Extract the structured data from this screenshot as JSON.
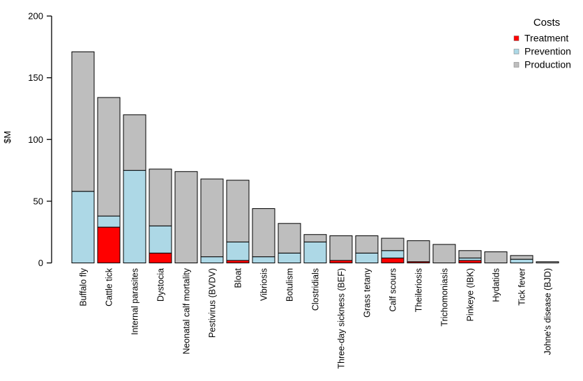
{
  "figure": {
    "background": "#ffffff",
    "text_color": "#000000",
    "bar_border_color": "#000000"
  },
  "chart_data": {
    "type": "bar",
    "stacked": true,
    "title": "",
    "xlabel": "",
    "ylabel": "$M",
    "ylim": [
      0,
      200
    ],
    "yticks": [
      0,
      50,
      100,
      150,
      200
    ],
    "grid": false,
    "legend": {
      "title": "Costs",
      "position": "top-right",
      "entries": [
        {
          "label": "Treatment",
          "color": "#ff0000"
        },
        {
          "label": "Prevention",
          "color": "#add8e6"
        },
        {
          "label": "Production",
          "color": "#bebebe"
        }
      ]
    },
    "categories": [
      "Buffalo fly",
      "Cattle tick",
      "Internal parasites",
      "Dystocia",
      "Neonatal calf mortality",
      "Pestivirus (BVDV)",
      "Bloat",
      "Vibriosis",
      "Botulism",
      "Clostridials",
      "Three-day sickness (BEF)",
      "Grass tetany",
      "Calf scours",
      "Theileriosis",
      "Trichomoniasis",
      "Pinkeye (IBK)",
      "Hydatids",
      "Tick fever",
      "Johne's disease (BJD)"
    ],
    "series": [
      {
        "name": "Treatment",
        "color": "#ff0000",
        "values": [
          0,
          29,
          0,
          8,
          0,
          0,
          2,
          0,
          0,
          0,
          2,
          0,
          4,
          1,
          0,
          2,
          0,
          0,
          0
        ]
      },
      {
        "name": "Prevention",
        "color": "#add8e6",
        "values": [
          58,
          9,
          75,
          22,
          0,
          5,
          15,
          5,
          8,
          17,
          0,
          8,
          6,
          0,
          0,
          2,
          0,
          3,
          0
        ]
      },
      {
        "name": "Production",
        "color": "#bebebe",
        "values": [
          113,
          96,
          45,
          46,
          74,
          63,
          50,
          39,
          24,
          6,
          20,
          14,
          10,
          17,
          15,
          6,
          9,
          3,
          1
        ]
      }
    ],
    "totals": [
      171,
      134,
      120,
      76,
      74,
      68,
      67,
      44,
      32,
      23,
      22,
      22,
      20,
      18,
      15,
      10,
      9,
      6,
      1
    ]
  }
}
